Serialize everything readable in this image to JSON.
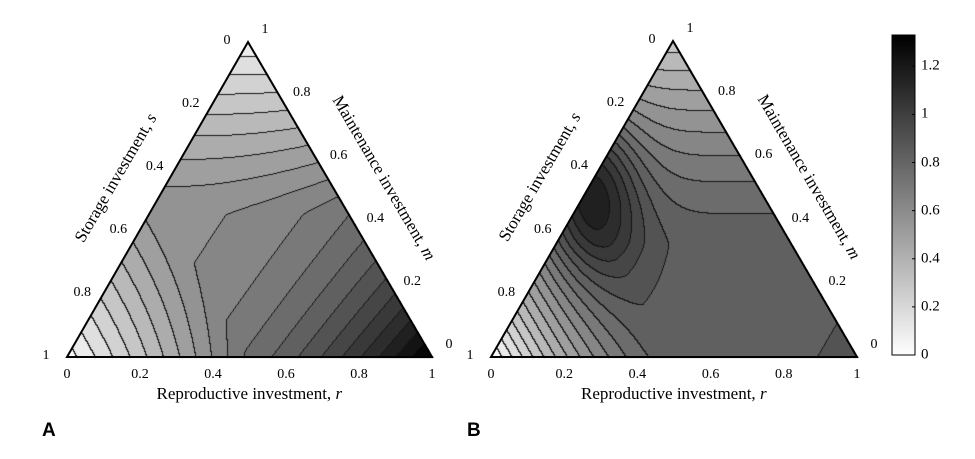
{
  "chart_data": [
    {
      "panel": "A",
      "type": "heatmap",
      "subtype": "ternary-contour",
      "axes": {
        "bottom": {
          "label": "Reproductive investment, ",
          "var": "r",
          "ticks": [
            "0",
            "0.2",
            "0.4",
            "0.6",
            "0.8",
            "1"
          ]
        },
        "left": {
          "label": "Storage investment, ",
          "var": "s",
          "ticks": [
            "0",
            "0.2",
            "0.4",
            "0.6",
            "0.8",
            "1"
          ]
        },
        "right": {
          "label": "Maintenance investment, ",
          "var": "m",
          "ticks": [
            "0",
            "0.2",
            "0.4",
            "0.6",
            "0.8",
            "1"
          ]
        }
      },
      "approx_values": [
        {
          "r": 1,
          "m": 0,
          "s": 0,
          "value": 1.33
        },
        {
          "r": 0,
          "m": 1,
          "s": 0,
          "value": 0.08
        },
        {
          "r": 0,
          "m": 0,
          "s": 1,
          "value": 0.03
        },
        {
          "r": 0.3,
          "m": 0.4,
          "s": 0.3,
          "value": 0.58
        }
      ]
    },
    {
      "panel": "B",
      "type": "heatmap",
      "subtype": "ternary-contour",
      "axes": {
        "bottom": {
          "label": "Reproductive investment, ",
          "var": "r",
          "ticks": [
            "0",
            "0.2",
            "0.4",
            "0.6",
            "0.8",
            "1"
          ]
        },
        "left": {
          "label": "Storage investment, ",
          "var": "s",
          "ticks": [
            "0",
            "0.2",
            "0.4",
            "0.6",
            "0.8",
            "1"
          ]
        },
        "right": {
          "label": "Maintenance investment, ",
          "var": "m",
          "ticks": [
            "0",
            "0.2",
            "0.4",
            "0.6",
            "0.8",
            "1"
          ]
        }
      },
      "approx_values": [
        {
          "r": 0.05,
          "m": 0.5,
          "s": 0.45,
          "value": 1.25
        },
        {
          "r": 0,
          "m": 1,
          "s": 0,
          "value": 0.3
        },
        {
          "r": 0,
          "m": 0,
          "s": 1,
          "value": 0.0
        },
        {
          "r": 0.5,
          "m": 0.25,
          "s": 0.25,
          "value": 0.85
        },
        {
          "r": 1,
          "m": 0,
          "s": 0,
          "value": 0.92
        }
      ]
    }
  ],
  "colorbar": {
    "min": 0,
    "max": 1.33,
    "ticks": [
      "0",
      "0.2",
      "0.4",
      "0.6",
      "0.8",
      "1",
      "1.2"
    ],
    "colormap": "white-to-black grayscale",
    "low_color": "#ffffff",
    "high_color": "#000000"
  },
  "panel_labels": [
    "A",
    "B"
  ]
}
